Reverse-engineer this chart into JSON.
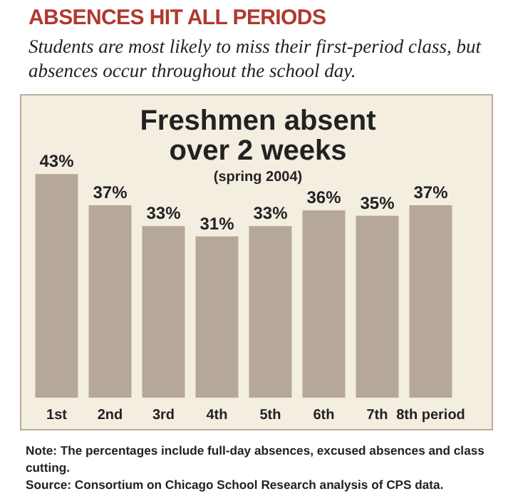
{
  "chart_data": {
    "type": "bar",
    "title": "ABSENCES HIT ALL PERIODS",
    "subtitle": "Students are most likely to miss their first-period class, but absences occur throughout the school day.",
    "annotations": [
      "Freshmen absent over 2 weeks",
      "(spring 2004)",
      "Note: The percentages include full-day absences, excused absences and class cutting.",
      "Source: Consortium on Chicago School Research analysis of CPS data."
    ],
    "categories": [
      "1st",
      "2nd",
      "3rd",
      "4th",
      "5th",
      "6th",
      "7th",
      "8th period"
    ],
    "values": [
      43,
      37,
      33,
      31,
      33,
      36,
      35,
      37
    ],
    "value_labels": [
      "43%",
      "37%",
      "33%",
      "31%",
      "33%",
      "36%",
      "35%",
      "37%"
    ],
    "color": "#b5a899"
  }
}
